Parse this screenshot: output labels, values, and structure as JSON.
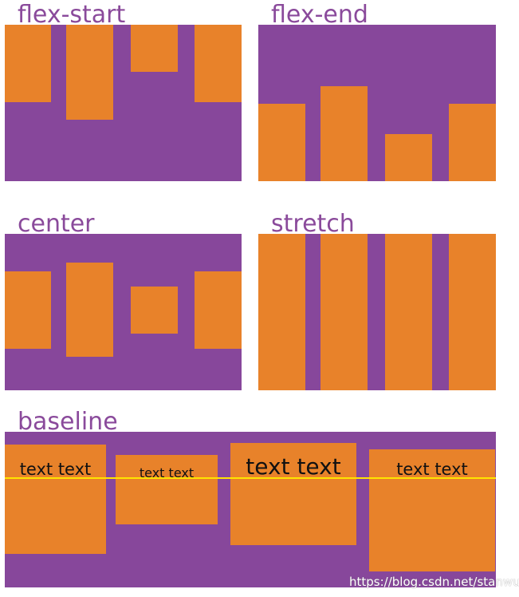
{
  "colors": {
    "container": "#87479b",
    "item": "#e8822a",
    "baseline_line": "#ffe400",
    "label": "#8a4a9b"
  },
  "panels": {
    "flex_start": {
      "label": "flex-start"
    },
    "flex_end": {
      "label": "flex-end"
    },
    "center": {
      "label": "center"
    },
    "stretch": {
      "label": "stretch"
    },
    "baseline": {
      "label": "baseline",
      "items": [
        "text text",
        "text text",
        "text text",
        "text text"
      ]
    }
  },
  "watermark": "https://blog.csdn.net/stanwuc"
}
